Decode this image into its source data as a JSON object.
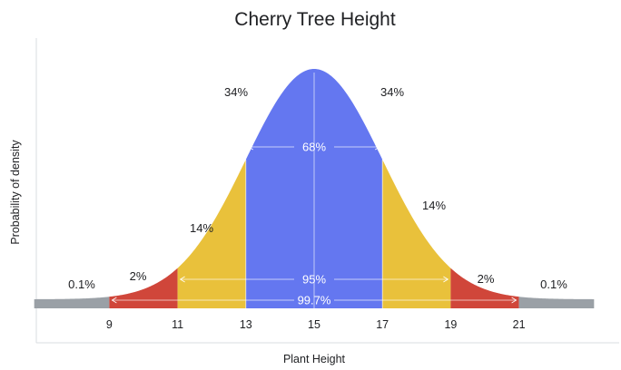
{
  "chart_data": {
    "type": "area",
    "title": "Cherry Tree Height",
    "xlabel": "Plant Height",
    "ylabel": "Probability of density",
    "distribution": {
      "mean": 15,
      "sd": 2
    },
    "xlim": [
      6.8,
      23.2
    ],
    "x_ticks": [
      "9",
      "11",
      "13",
      "15",
      "17",
      "19",
      "21"
    ],
    "regions": [
      {
        "name": "tail-left",
        "from": 6.8,
        "to": 9,
        "color": "#9aa0a6",
        "label": "0.1%"
      },
      {
        "name": "outer-left",
        "from": 9,
        "to": 11,
        "color": "#d0463a",
        "label": "2%"
      },
      {
        "name": "mid-left",
        "from": 11,
        "to": 13,
        "color": "#e9c13b",
        "label": "14%"
      },
      {
        "name": "center-left",
        "from": 13,
        "to": 15,
        "color": "#6477f0",
        "label": "34%"
      },
      {
        "name": "center-right",
        "from": 15,
        "to": 17,
        "color": "#6477f0",
        "label": "34%"
      },
      {
        "name": "mid-right",
        "from": 17,
        "to": 19,
        "color": "#e9c13b",
        "label": "14%"
      },
      {
        "name": "outer-right",
        "from": 19,
        "to": 21,
        "color": "#d0463a",
        "label": "2%"
      },
      {
        "name": "tail-right",
        "from": 21,
        "to": 23.2,
        "color": "#9aa0a6",
        "label": "0.1%"
      }
    ],
    "spans": [
      {
        "name": "span-68",
        "from": 13,
        "to": 17,
        "label": "68%"
      },
      {
        "name": "span-95",
        "from": 11,
        "to": 19,
        "label": "95%"
      },
      {
        "name": "span-99-7",
        "from": 9,
        "to": 21,
        "label": "99.7%"
      }
    ]
  }
}
